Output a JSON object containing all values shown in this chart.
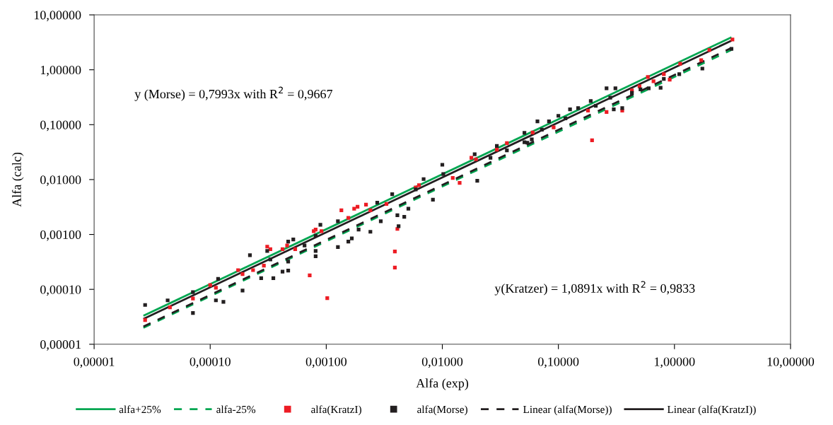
{
  "chart_data": {
    "type": "scatter",
    "xlabel": "Alfa (exp)",
    "ylabel": "Alfa (calc)",
    "log": "xy",
    "grid": false,
    "legend": "bottom",
    "xlim": [
      1e-05,
      10
    ],
    "ylim": [
      1e-05,
      10
    ],
    "xticks": [
      {
        "value": 1e-05,
        "label": "0,00001"
      },
      {
        "value": 0.0001,
        "label": "0,00010"
      },
      {
        "value": 0.001,
        "label": "0,00100"
      },
      {
        "value": 0.01,
        "label": "0,01000"
      },
      {
        "value": 0.1,
        "label": "0,10000"
      },
      {
        "value": 1,
        "label": "1,00000"
      },
      {
        "value": 10,
        "label": "10,00000"
      }
    ],
    "yticks": [
      {
        "value": 1e-05,
        "label": "0,00001"
      },
      {
        "value": 0.0001,
        "label": "0,00010"
      },
      {
        "value": 0.001,
        "label": "0,00100"
      },
      {
        "value": 0.01,
        "label": "0,01000"
      },
      {
        "value": 0.1,
        "label": "0,10000"
      },
      {
        "value": 1,
        "label": "1,00000"
      },
      {
        "value": 10,
        "label": "10,00000"
      }
    ],
    "annotations": [
      "y (Morse) = 0,7993x with R$^{2}$ = 0,9667",
      "y(Kratzer) = 1,0891x with R$^{2}$ = 0,9833"
    ],
    "series": [
      {
        "name": "alfa+25%",
        "type": "line",
        "line_style": "solid",
        "color": "#00a651",
        "x": [
          2.66e-05,
          3.1
        ],
        "values": [
          3.3e-05,
          3.9
        ]
      },
      {
        "name": "alfa-25%",
        "type": "line",
        "line_style": "dashed",
        "color": "#00a651",
        "x": [
          2.66e-05,
          3.1
        ],
        "values": [
          2e-05,
          2.3
        ]
      },
      {
        "name": "alfa(KratzI)",
        "marker": "square",
        "color": "#ed1c24",
        "x": [
          2.75e-05,
          4.5e-05,
          7.1e-05,
          0.000112,
          0.0001,
          0.00019,
          0.000174,
          0.000234,
          0.00031,
          0.00033,
          0.00029,
          0.00042,
          0.00046,
          0.00072,
          0.00102,
          0.00081,
          0.00091,
          0.00054,
          0.00155,
          0.00135,
          0.00174,
          0.00186,
          0.0022,
          0.0033,
          0.0024,
          0.0041,
          0.0039,
          0.0039,
          0.0059,
          0.0063,
          0.0123,
          0.0141,
          0.0178,
          0.0195,
          0.0295,
          0.036,
          0.00078,
          0.195,
          0.06,
          0.091,
          0.18,
          0.26,
          0.355,
          0.43,
          0.5,
          0.66,
          0.81,
          0.91,
          1.12,
          1.7,
          2.0,
          3.16,
          0.59
        ],
        "values": [
          2.75e-05,
          4.7e-05,
          6.8e-05,
          0.000107,
          0.00012,
          0.00019,
          0.000224,
          0.000224,
          0.0006,
          0.00054,
          0.00027,
          0.00054,
          0.00063,
          0.00018,
          6.9e-05,
          0.00123,
          0.00115,
          0.00054,
          0.002,
          0.00275,
          0.00295,
          0.0032,
          0.0035,
          0.0036,
          0.00275,
          0.00126,
          0.00049,
          0.00025,
          0.0072,
          0.0079,
          0.0107,
          0.0087,
          0.025,
          0.0234,
          0.035,
          0.046,
          0.00115,
          0.052,
          0.072,
          0.089,
          0.18,
          0.17,
          0.18,
          0.42,
          0.5,
          0.62,
          0.83,
          0.66,
          1.29,
          1.5,
          2.3,
          3.55,
          0.74
        ]
      },
      {
        "name": "alfa(Morse)",
        "marker": "square",
        "color": "#231f20",
        "x": [
          2.75e-05,
          4.3e-05,
          7.1e-05,
          7.1e-05,
          0.000112,
          0.00013,
          0.000117,
          0.00019,
          0.00022,
          0.000275,
          0.00035,
          0.00042,
          0.00047,
          0.00031,
          0.00047,
          0.00052,
          0.00081,
          0.00081,
          0.00089,
          0.00126,
          0.00155,
          0.0019,
          0.0024,
          0.00126,
          0.00081,
          0.00065,
          0.00033,
          0.00047,
          0.00166,
          0.00295,
          0.0041,
          0.0047,
          0.0051,
          0.0037,
          0.00275,
          0.0083,
          0.0069,
          0.01,
          0.0102,
          0.02,
          0.019,
          0.026,
          0.0295,
          0.036,
          0.051,
          0.054,
          0.0059,
          0.0042,
          0.066,
          0.083,
          0.1,
          0.126,
          0.148,
          0.19,
          0.26,
          0.31,
          0.3,
          0.355,
          0.051,
          0.059,
          0.51,
          0.6,
          0.76,
          0.81,
          1.74,
          3.1,
          0.28,
          0.21,
          0.43,
          1.1,
          0.072,
          0.115
        ],
        "values": [
          5.2e-05,
          6.3e-05,
          3.7e-05,
          8.9e-05,
          6.3e-05,
          5.9e-05,
          0.000155,
          9.5e-05,
          0.00042,
          0.00016,
          0.00016,
          0.00021,
          0.00022,
          0.0005,
          0.00074,
          0.00081,
          0.0004,
          0.0005,
          0.0015,
          0.00059,
          0.00074,
          0.00123,
          0.00112,
          0.00174,
          0.00095,
          0.00063,
          0.00035,
          0.00032,
          0.00085,
          0.00174,
          0.00224,
          0.0021,
          0.00295,
          0.0054,
          0.0038,
          0.0043,
          0.0102,
          0.0186,
          0.0126,
          0.0095,
          0.029,
          0.025,
          0.041,
          0.034,
          0.071,
          0.047,
          0.0066,
          0.00141,
          0.115,
          0.115,
          0.145,
          0.19,
          0.2,
          0.27,
          0.46,
          0.46,
          0.19,
          0.2,
          0.048,
          0.054,
          0.44,
          0.46,
          0.47,
          0.68,
          1.05,
          2.4,
          0.31,
          0.22,
          0.38,
          0.83,
          0.081,
          0.13
        ]
      },
      {
        "name": "Linear (alfa(Morse))",
        "type": "line",
        "line_style": "dashed",
        "color": "#231f20",
        "x": [
          2.66e-05,
          3.1
        ],
        "values": [
          2.1e-05,
          2.5
        ]
      },
      {
        "name": "Linear (alfa(KratzI))",
        "type": "line",
        "line_style": "solid",
        "color": "#231f20",
        "x": [
          2.66e-05,
          3.1
        ],
        "values": [
          2.9e-05,
          3.4
        ]
      }
    ]
  }
}
